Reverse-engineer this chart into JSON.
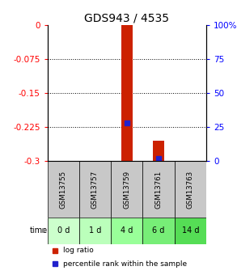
{
  "title": "GDS943 / 4535",
  "samples": [
    "GSM13755",
    "GSM13757",
    "GSM13759",
    "GSM13761",
    "GSM13763"
  ],
  "time_labels": [
    "0 d",
    "1 d",
    "4 d",
    "6 d",
    "14 d"
  ],
  "time_green_colors": [
    "#ccffcc",
    "#bbffbb",
    "#99ff99",
    "#77ee77",
    "#55dd55"
  ],
  "ylim_left": [
    -0.3,
    0
  ],
  "ylim_right": [
    0,
    100
  ],
  "yticks_left": [
    0,
    -0.075,
    -0.15,
    -0.225,
    -0.3
  ],
  "yticks_right": [
    0,
    25,
    50,
    75,
    100
  ],
  "log_ratio_bottoms": [
    null,
    null,
    -0.3,
    -0.3,
    null
  ],
  "log_ratio_tops": [
    null,
    null,
    0.0,
    -0.255,
    null
  ],
  "percentile_ranks": [
    null,
    null,
    28,
    2,
    null
  ],
  "bar_width": 0.35,
  "red_color": "#cc2200",
  "blue_color": "#2222cc",
  "gray_bg": "#c8c8c8",
  "title_fontsize": 10,
  "tick_fontsize": 7.5,
  "label_fontsize": 7
}
